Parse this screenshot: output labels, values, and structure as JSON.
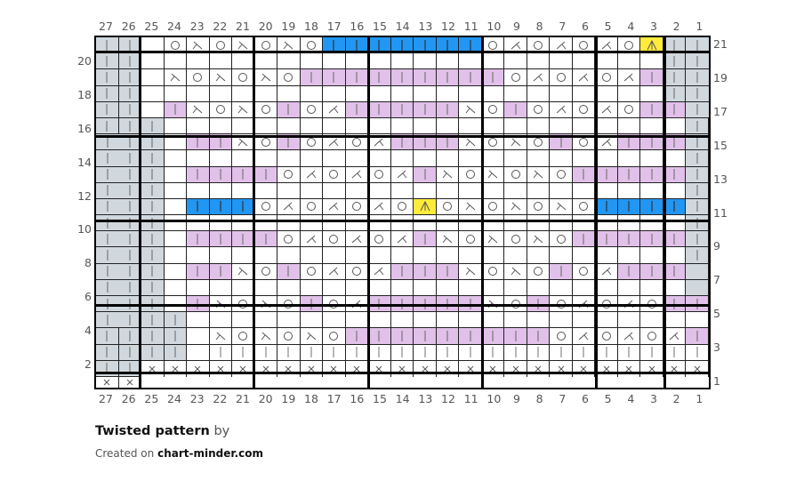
{
  "colors": {
    "gray": "#d0d8de",
    "purple": "#e1c0e9",
    "blue": "#2196f3",
    "yellow": "#ffeb3b",
    "empty": "#ffffff"
  },
  "legend_codes": {
    "g": "gray cell with stitch bar",
    "G": "gray cell empty",
    "e": "empty",
    "O": "yarn-over circle",
    "L": "right-leaning decrease",
    "R": "left-leaning decrease",
    "P": "purple stitch bar",
    "B": "blue stitch bar",
    "Y": "yellow double decrease",
    "W": "white stitch bar",
    "X": "cross"
  },
  "columns": [
    27,
    26,
    25,
    24,
    23,
    22,
    21,
    20,
    19,
    18,
    17,
    16,
    15,
    14,
    13,
    12,
    11,
    10,
    9,
    8,
    7,
    6,
    5,
    4,
    3,
    2,
    1
  ],
  "rows": [
    {
      "n": 21,
      "cells": "ggeOLOLOLOBBBBBBBOROROROYgg"
    },
    {
      "n": 20,
      "cells": "ggeeeeeeeeeeeeeeeeeeeeeeegg"
    },
    {
      "n": 19,
      "cells": "ggeLOLOLOPPPPPPPPPORORORPgg"
    },
    {
      "n": 18,
      "cells": "ggeeeeeeeeeeeeeeeeeeeeeeegg"
    },
    {
      "n": 17,
      "cells": "ggePLOLOPORPPPPPLOPOROROPPgg"
    },
    {
      "n": 16,
      "cells": "ggeeeeeeeeeeeeeeeeeeeeeeegg"
    },
    {
      "n": 15,
      "cells": "ggePPLOPORORPPPLOLOPORPPPgg"
    },
    {
      "n": 14,
      "cells": "ggeeeeeeeeeeeeeeeeeeeeeeegg"
    },
    {
      "n": 13,
      "cells": "ggePPPPORORORPLOLOLOPPPPPgg"
    },
    {
      "n": 12,
      "cells": "ggeeeeeeeeeeeeeeeeeeeeeeegg"
    },
    {
      "n": 11,
      "cells": "ggeBBBOROROROYOLOLOLOBBBBgg"
    },
    {
      "n": 10,
      "cells": "ggeeeeeeeeeeeeeeeeeeeeeeegg"
    },
    {
      "n": 9,
      "cells": "ggePPPPORORORPLOLOLOPPPPPgg"
    },
    {
      "n": 8,
      "cells": "ggeeeeeeeeeeeeeeeeeeeeeeegg"
    },
    {
      "n": 7,
      "cells": "ggePPLOPORORPPPLOLOPORPPPGg"
    },
    {
      "n": 6,
      "cells": "ggeeeeeeeeeeeeeeeeeeeeeeeGg"
    },
    {
      "n": 5,
      "cells": "ggePLOLOPORPPPPPLOPOROROPPgg"
    },
    {
      "n": 4,
      "cells": "ggeeeeeeeeeeeeeeeeeeeeeeegg"
    },
    {
      "n": 3,
      "cells": "ggeLOLOLOPPPPPPPPPORORORPgg"
    },
    {
      "n": 2,
      "cells": "ggeWWWWWWWWWWWWWWWWWWWWWWgg"
    },
    {
      "n": 1,
      "cells": "XXXXXXXXXXXXXXXXXXXXXXXXXXX"
    }
  ],
  "footer": {
    "title": "Twisted pattern",
    "by": "by",
    "created_on": "Created on",
    "site": "chart-minder.com"
  }
}
